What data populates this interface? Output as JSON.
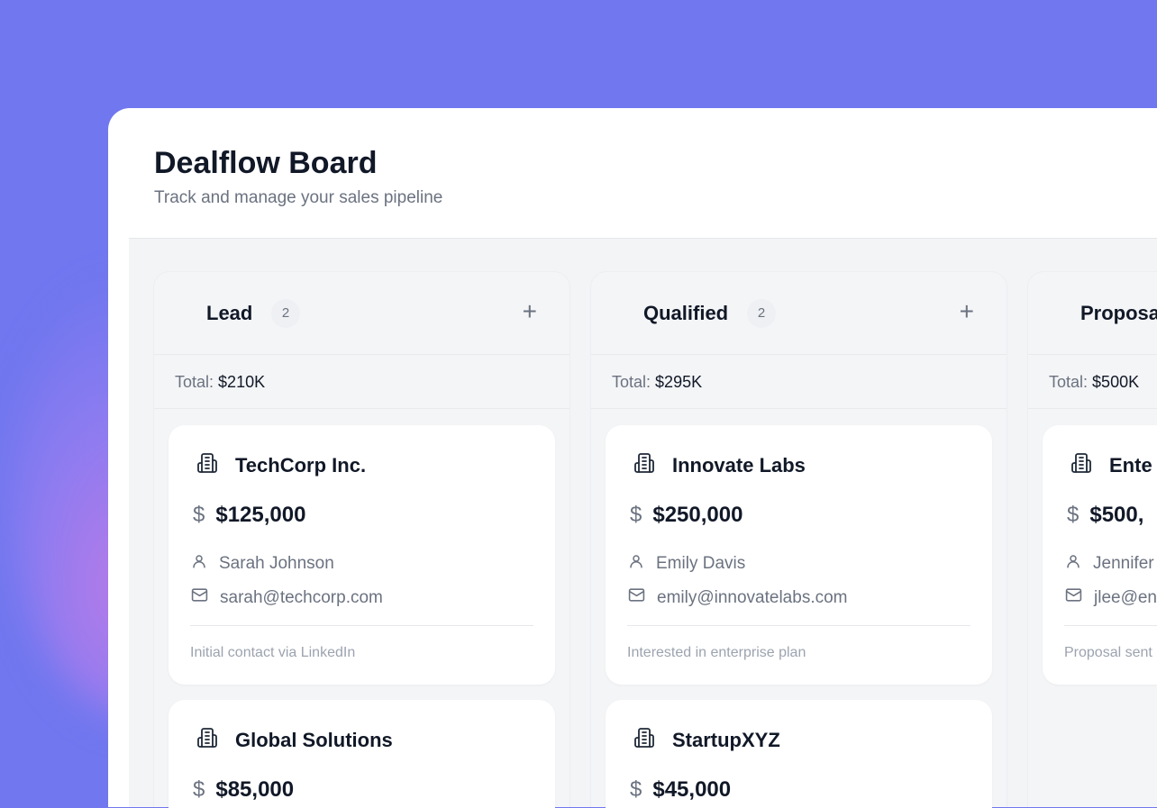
{
  "header": {
    "title": "Dealflow Board",
    "subtitle": "Track and manage your sales pipeline"
  },
  "total_label": "Total:",
  "columns": [
    {
      "name": "Lead",
      "count": "2",
      "total": "$210K",
      "cards": [
        {
          "company": "TechCorp Inc.",
          "amount": "$125,000",
          "contact": "Sarah Johnson",
          "email": "sarah@techcorp.com",
          "note": "Initial contact via LinkedIn"
        },
        {
          "company": "Global Solutions",
          "amount": "$85,000"
        }
      ]
    },
    {
      "name": "Qualified",
      "count": "2",
      "total": "$295K",
      "cards": [
        {
          "company": "Innovate Labs",
          "amount": "$250,000",
          "contact": "Emily Davis",
          "email": "emily@innovatelabs.com",
          "note": "Interested in enterprise plan"
        },
        {
          "company": "StartupXYZ",
          "amount": "$45,000"
        }
      ]
    },
    {
      "name": "Proposa",
      "total": "$500K",
      "cards": [
        {
          "company": "Ente",
          "amount": "$500,",
          "contact": "Jennifer",
          "email": "jlee@en",
          "note": "Proposal sent"
        }
      ]
    }
  ],
  "icons": {
    "company": "building-icon",
    "amount": "dollar-icon",
    "contact": "user-icon",
    "email": "mail-icon",
    "add": "plus-icon"
  },
  "colors": {
    "background": "#7077ef",
    "text": "#111827",
    "muted": "#6b7280"
  }
}
